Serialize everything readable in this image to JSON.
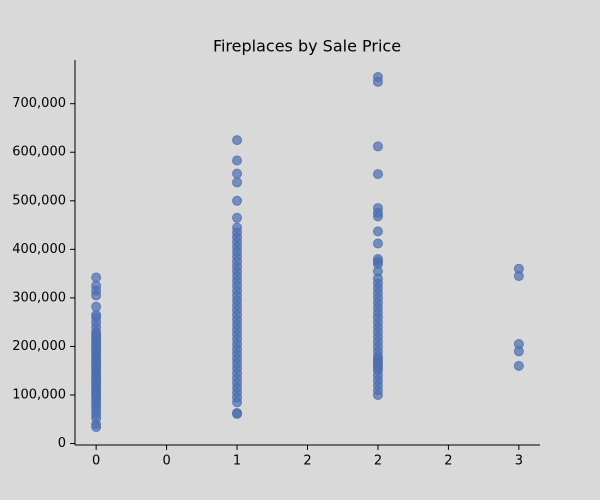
{
  "chart_data": {
    "type": "scatter",
    "title": "Fireplaces by Sale Price",
    "color": "#4c6fb0",
    "x": [
      0,
      0,
      0,
      0,
      0,
      0,
      0,
      0,
      0,
      0,
      0,
      0,
      0,
      0,
      0,
      0,
      0,
      0,
      0,
      0,
      0,
      0,
      0,
      0,
      0,
      0,
      0,
      0,
      0,
      0,
      0,
      0,
      0,
      0,
      0,
      0,
      0,
      0,
      0,
      0,
      0,
      0,
      0,
      0,
      0,
      1,
      1,
      1,
      1,
      1,
      1,
      1,
      1,
      1,
      1,
      1,
      1,
      1,
      1,
      1,
      1,
      1,
      1,
      1,
      1,
      1,
      1,
      1,
      1,
      1,
      1,
      1,
      1,
      1,
      1,
      1,
      1,
      1,
      1,
      1,
      1,
      1,
      1,
      1,
      1,
      1,
      1,
      1,
      1,
      1,
      2,
      2,
      2,
      2,
      2,
      2,
      2,
      2,
      2,
      2,
      2,
      2,
      2,
      2,
      2,
      2,
      2,
      2,
      2,
      2,
      2,
      2,
      2,
      2,
      2,
      2,
      2,
      2,
      2,
      2,
      2,
      2,
      2,
      2,
      2,
      2,
      2,
      2,
      2,
      2,
      2,
      3,
      3,
      3,
      3,
      3
    ],
    "y": [
      34000,
      40000,
      52000,
      60000,
      68000,
      75000,
      82000,
      88000,
      95000,
      100000,
      105000,
      110000,
      115000,
      120000,
      125000,
      130000,
      135000,
      140000,
      145000,
      150000,
      155000,
      160000,
      165000,
      170000,
      175000,
      180000,
      185000,
      190000,
      195000,
      200000,
      205000,
      210000,
      215000,
      220000,
      225000,
      230000,
      240000,
      250000,
      260000,
      265000,
      282000,
      305000,
      315000,
      325000,
      342000,
      61000,
      63000,
      85000,
      95000,
      105000,
      115000,
      125000,
      135000,
      145000,
      155000,
      165000,
      175000,
      185000,
      195000,
      205000,
      215000,
      225000,
      235000,
      245000,
      255000,
      265000,
      275000,
      285000,
      295000,
      305000,
      315000,
      325000,
      335000,
      345000,
      355000,
      365000,
      375000,
      385000,
      395000,
      405000,
      415000,
      425000,
      435000,
      445000,
      465000,
      500000,
      538000,
      556000,
      583000,
      625000,
      100000,
      110000,
      120000,
      130000,
      140000,
      150000,
      155000,
      160000,
      165000,
      170000,
      175000,
      180000,
      190000,
      200000,
      210000,
      220000,
      230000,
      240000,
      250000,
      260000,
      270000,
      280000,
      290000,
      300000,
      310000,
      320000,
      330000,
      340000,
      355000,
      370000,
      375000,
      380000,
      412000,
      437000,
      468000,
      475000,
      485000,
      555000,
      612000,
      745000,
      755000,
      160000,
      190000,
      205000,
      345000,
      360000
    ],
    "xlim": [
      -0.15,
      3.15
    ],
    "ylim": [
      -3000,
      790000
    ],
    "xticks": [
      0,
      {
        "value": 0.5,
        "label": "0"
      },
      1,
      {
        "value": 1.5,
        "label": "2"
      },
      2,
      {
        "value": 2.5,
        "label": "2"
      },
      3
    ],
    "yticks": [
      0,
      {
        "value": 100000,
        "label": "100,000"
      },
      {
        "value": 200000,
        "label": "200,000"
      },
      {
        "value": 300000,
        "label": "300,000"
      },
      {
        "value": 400000,
        "label": "400,000"
      },
      {
        "value": 500000,
        "label": "500,000"
      },
      {
        "value": 600000,
        "label": "600,000"
      },
      {
        "value": 700000,
        "label": "700,000"
      }
    ]
  }
}
